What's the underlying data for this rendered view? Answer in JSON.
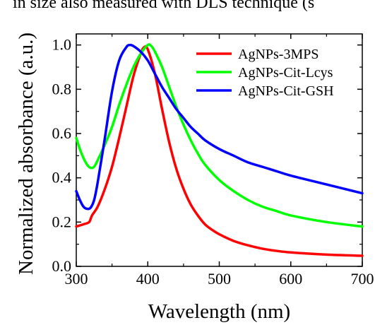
{
  "caption_fragment": "in size also measured with DLS technique (s",
  "chart_data": {
    "type": "line",
    "xlabel": "Wavelength (nm)",
    "ylabel": "Normalized absorbance (a.u.)",
    "xlim": [
      300,
      700
    ],
    "ylim": [
      0.0,
      1.05
    ],
    "xticks": [
      300,
      400,
      500,
      600,
      700
    ],
    "yticks": [
      0.0,
      0.2,
      0.4,
      0.6,
      0.8,
      1.0
    ],
    "xtick_labels": [
      "300",
      "400",
      "500",
      "600",
      "700"
    ],
    "ytick_labels": [
      "0.0",
      "0.2",
      "0.4",
      "0.6",
      "0.8",
      "1.0"
    ],
    "grid": false,
    "legend_position": "top-right",
    "series": [
      {
        "name": "AgNPs-3MPS",
        "color": "#ff0000",
        "x": [
          300,
          310,
          318,
          322,
          330,
          340,
          350,
          360,
          370,
          380,
          390,
          395,
          400,
          410,
          420,
          430,
          440,
          450,
          460,
          470,
          480,
          490,
          500,
          520,
          540,
          560,
          580,
          600,
          650,
          700
        ],
        "y": [
          0.18,
          0.19,
          0.2,
          0.23,
          0.27,
          0.35,
          0.45,
          0.58,
          0.72,
          0.86,
          0.96,
          0.99,
          0.98,
          0.87,
          0.71,
          0.56,
          0.44,
          0.35,
          0.28,
          0.23,
          0.19,
          0.165,
          0.145,
          0.115,
          0.095,
          0.08,
          0.07,
          0.063,
          0.053,
          0.048
        ]
      },
      {
        "name": "AgNPs-Cit-Lcys",
        "color": "#00ff00",
        "x": [
          300,
          305,
          310,
          315,
          320,
          325,
          330,
          340,
          350,
          360,
          370,
          380,
          390,
          400,
          405,
          410,
          420,
          430,
          440,
          450,
          460,
          470,
          480,
          500,
          520,
          540,
          560,
          580,
          600,
          650,
          700
        ],
        "y": [
          0.58,
          0.53,
          0.49,
          0.46,
          0.445,
          0.45,
          0.48,
          0.55,
          0.63,
          0.73,
          0.82,
          0.9,
          0.96,
          1.0,
          0.995,
          0.97,
          0.9,
          0.81,
          0.72,
          0.64,
          0.57,
          0.51,
          0.46,
          0.39,
          0.34,
          0.3,
          0.27,
          0.25,
          0.23,
          0.2,
          0.18
        ]
      },
      {
        "name": "AgNPs-Cit-GSH",
        "color": "#0000ff",
        "x": [
          300,
          305,
          310,
          315,
          320,
          325,
          330,
          340,
          350,
          360,
          370,
          375,
          380,
          390,
          400,
          410,
          420,
          430,
          440,
          450,
          460,
          470,
          480,
          500,
          520,
          540,
          560,
          580,
          600,
          650,
          700
        ],
        "y": [
          0.34,
          0.3,
          0.27,
          0.26,
          0.265,
          0.3,
          0.38,
          0.58,
          0.79,
          0.93,
          0.99,
          1.0,
          0.995,
          0.97,
          0.93,
          0.87,
          0.81,
          0.76,
          0.71,
          0.67,
          0.63,
          0.6,
          0.57,
          0.53,
          0.5,
          0.47,
          0.45,
          0.43,
          0.41,
          0.37,
          0.33
        ]
      }
    ]
  }
}
